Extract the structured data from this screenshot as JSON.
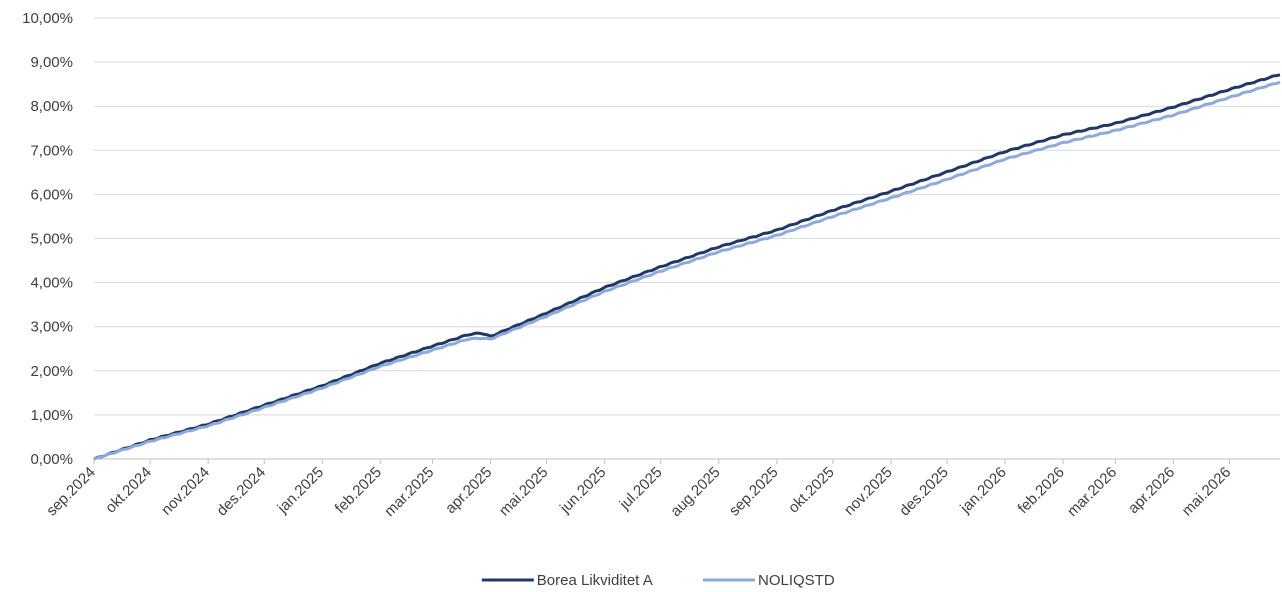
{
  "chart_data": {
    "type": "line",
    "title": "",
    "xlabel": "",
    "ylabel": "",
    "ylim": [
      0,
      10
    ],
    "y_tick_labels": [
      "0,00%",
      "1,00%",
      "2,00%",
      "3,00%",
      "4,00%",
      "5,00%",
      "6,00%",
      "7,00%",
      "8,00%",
      "9,00%",
      "10,00%"
    ],
    "x_tick_labels": [
      "sep.2024",
      "okt.2024",
      "nov.2024",
      "des.2024",
      "jan.2025",
      "feb.2025",
      "mar.2025",
      "apr.2025",
      "mai.2025",
      "jun.2025",
      "jul.2025",
      "aug.2025",
      "sep.2025",
      "okt.2025",
      "nov.2025",
      "des.2025",
      "jan.2026",
      "feb.2026",
      "mar.2026",
      "apr.2026",
      "mai.2026"
    ],
    "x_tick_days": [
      0,
      30,
      61,
      91,
      122,
      153,
      181,
      212,
      242,
      273,
      303,
      334,
      365,
      395,
      426,
      456,
      487,
      518,
      546,
      577,
      607
    ],
    "x_range_days": [
      0,
      634
    ],
    "grid": true,
    "legend": "bottom-center",
    "series": [
      {
        "name": "Borea Likviditet A",
        "color": "#203864",
        "x": [
          0,
          30,
          61,
          91,
          122,
          153,
          181,
          200,
          207,
          212,
          242,
          273,
          303,
          334,
          365,
          395,
          426,
          456,
          487,
          518,
          546,
          577,
          607,
          634
        ],
        "y": [
          0.0,
          0.43,
          0.79,
          1.22,
          1.66,
          2.17,
          2.56,
          2.82,
          2.86,
          2.78,
          3.31,
          3.89,
          4.36,
          4.81,
          5.19,
          5.64,
          6.07,
          6.51,
          6.97,
          7.35,
          7.61,
          7.98,
          8.38,
          8.72
        ]
      },
      {
        "name": "NOLIQSTD",
        "color": "#8eaadb",
        "x": [
          0,
          30,
          61,
          91,
          122,
          153,
          181,
          200,
          207,
          212,
          242,
          273,
          303,
          334,
          365,
          395,
          426,
          456,
          487,
          518,
          546,
          577,
          607,
          634
        ],
        "y": [
          0.0,
          0.4,
          0.75,
          1.17,
          1.61,
          2.1,
          2.47,
          2.72,
          2.74,
          2.72,
          3.24,
          3.8,
          4.26,
          4.7,
          5.07,
          5.5,
          5.92,
          6.34,
          6.8,
          7.17,
          7.45,
          7.8,
          8.2,
          8.55
        ]
      }
    ]
  }
}
